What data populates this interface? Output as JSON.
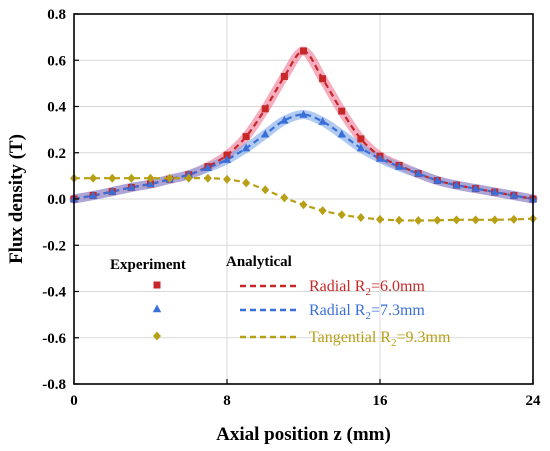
{
  "chart_data": {
    "type": "line",
    "xlabel": "Axial position z (mm)",
    "ylabel": "Flux density (T)",
    "xlim": [
      0,
      24
    ],
    "ylim": [
      -0.8,
      0.8
    ],
    "x_ticks": [
      "0",
      "8",
      "16",
      "24"
    ],
    "y_ticks": [
      "-0.8",
      "-0.6",
      "-0.4",
      "-0.2",
      "0.0",
      "0.2",
      "0.4",
      "0.6",
      "0.8"
    ],
    "grid": true,
    "legend": {
      "placement": "lower-left",
      "experiment_header": "Experiment",
      "analytical_header": "Analytical"
    },
    "series": [
      {
        "label_main": "Radial R",
        "label_sub": "2",
        "label_tail": "=6.0mm",
        "color": "#c62828",
        "band_color": "#ef6a8a",
        "marker": "square",
        "x": [
          0,
          1,
          2,
          3,
          4,
          5,
          6,
          7,
          8,
          9,
          10,
          11,
          12,
          13,
          14,
          15,
          16,
          17,
          18,
          19,
          20,
          21,
          22,
          23,
          24
        ],
        "y": [
          0.0,
          0.015,
          0.032,
          0.05,
          0.065,
          0.085,
          0.105,
          0.14,
          0.19,
          0.27,
          0.39,
          0.53,
          0.64,
          0.52,
          0.38,
          0.26,
          0.185,
          0.145,
          0.11,
          0.08,
          0.06,
          0.045,
          0.03,
          0.015,
          0.0
        ]
      },
      {
        "label_main": "Radial R",
        "label_sub": "2",
        "label_tail": "=7.3mm",
        "color": "#3b6fd8",
        "band_color": "#6f9ee8",
        "marker": "triangle",
        "x": [
          0,
          1,
          2,
          3,
          4,
          5,
          6,
          7,
          8,
          9,
          10,
          11,
          12,
          13,
          14,
          15,
          16,
          17,
          18,
          19,
          20,
          21,
          22,
          23,
          24
        ],
        "y": [
          0.0,
          0.015,
          0.032,
          0.05,
          0.065,
          0.085,
          0.105,
          0.135,
          0.17,
          0.22,
          0.28,
          0.34,
          0.365,
          0.335,
          0.28,
          0.22,
          0.175,
          0.14,
          0.11,
          0.08,
          0.06,
          0.045,
          0.03,
          0.015,
          0.0
        ]
      },
      {
        "label_main": "Tangential R",
        "label_sub": "2",
        "label_tail": "=9.3mm",
        "color": "#b8a016",
        "band_color": "#d8c85a",
        "marker": "diamond",
        "x": [
          0,
          1,
          2,
          3,
          4,
          5,
          6,
          7,
          8,
          9,
          10,
          11,
          12,
          13,
          14,
          15,
          16,
          17,
          18,
          19,
          20,
          21,
          22,
          23,
          24
        ],
        "y": [
          0.09,
          0.09,
          0.09,
          0.09,
          0.09,
          0.09,
          0.09,
          0.09,
          0.085,
          0.07,
          0.04,
          0.005,
          -0.025,
          -0.05,
          -0.068,
          -0.08,
          -0.088,
          -0.092,
          -0.093,
          -0.092,
          -0.09,
          -0.09,
          -0.09,
          -0.088,
          -0.085
        ]
      }
    ]
  }
}
